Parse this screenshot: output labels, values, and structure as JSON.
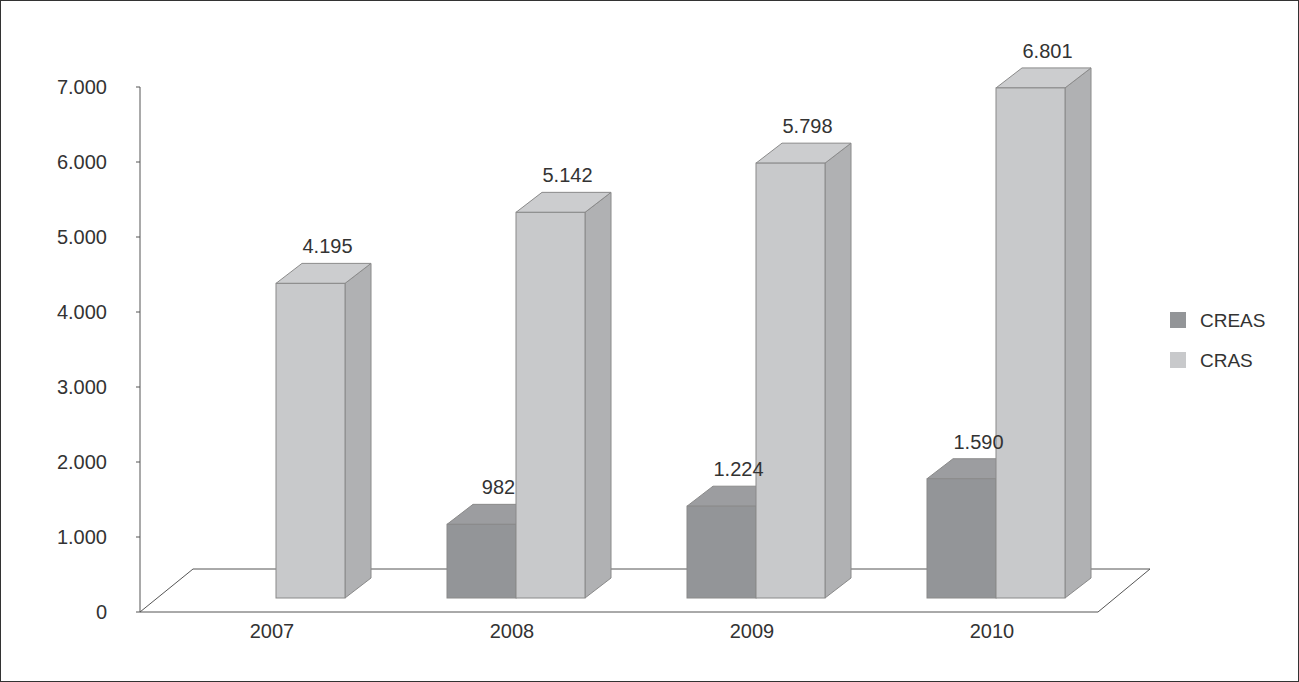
{
  "chart_data": {
    "type": "bar",
    "categories": [
      "2007",
      "2008",
      "2009",
      "2010"
    ],
    "series": [
      {
        "name": "CREAS",
        "color": "#939598",
        "values": [
          null,
          982,
          1224,
          1590
        ],
        "value_labels": [
          null,
          "982",
          "1.224",
          "1.590"
        ]
      },
      {
        "name": "CRAS",
        "color": "#c8c9cb",
        "values": [
          4195,
          5142,
          5798,
          6801
        ],
        "value_labels": [
          "4.195",
          "5.142",
          "5.798",
          "6.801"
        ]
      }
    ],
    "ylim": [
      0,
      7000
    ],
    "yticks": [
      0,
      {
        "value": 1000,
        "label": "1.000"
      },
      {
        "value": 2000,
        "label": "2.000"
      },
      {
        "value": 3000,
        "label": "3.000"
      },
      {
        "value": 4000,
        "label": "4.000"
      },
      {
        "value": 5000,
        "label": "5.000"
      },
      {
        "value": 6000,
        "label": "6.000"
      },
      {
        "value": 7000,
        "label": "7.000"
      }
    ],
    "grid": false,
    "legend": "right",
    "data_labels": true
  }
}
